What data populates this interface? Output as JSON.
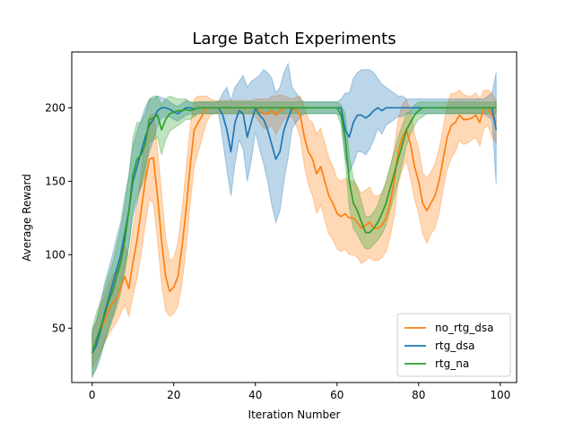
{
  "chart_data": {
    "type": "line",
    "title": "Large Batch Experiments",
    "xlabel": "Iteration Number",
    "ylabel": "Average Reward",
    "xlim": [
      -5,
      104
    ],
    "ylim": [
      13,
      238
    ],
    "xticks": [
      0,
      20,
      40,
      60,
      80,
      100
    ],
    "yticks": [
      50,
      100,
      150,
      200
    ],
    "grid": false,
    "legend_position": "lower-right",
    "x": [
      0,
      1,
      2,
      3,
      4,
      5,
      6,
      7,
      8,
      9,
      10,
      11,
      12,
      13,
      14,
      15,
      16,
      17,
      18,
      19,
      20,
      21,
      22,
      23,
      24,
      25,
      26,
      27,
      28,
      29,
      30,
      31,
      32,
      33,
      34,
      35,
      36,
      37,
      38,
      39,
      40,
      41,
      42,
      43,
      44,
      45,
      46,
      47,
      48,
      49,
      50,
      51,
      52,
      53,
      54,
      55,
      56,
      57,
      58,
      59,
      60,
      61,
      62,
      63,
      64,
      65,
      66,
      67,
      68,
      69,
      70,
      71,
      72,
      73,
      74,
      75,
      76,
      77,
      78,
      79,
      80,
      81,
      82,
      83,
      84,
      85,
      86,
      87,
      88,
      89,
      90,
      91,
      92,
      93,
      94,
      95,
      96,
      97,
      98,
      99
    ],
    "series": [
      {
        "name": "no_rtg_dsa",
        "color": "#ff7f0e",
        "values": [
          33,
          40,
          48,
          55,
          62,
          67,
          70,
          78,
          85,
          77,
          95,
          110,
          130,
          150,
          165,
          166,
          140,
          110,
          85,
          75,
          78,
          85,
          105,
          130,
          160,
          185,
          190,
          195,
          200,
          200,
          200,
          200,
          200,
          200,
          200,
          200,
          200,
          200,
          200,
          200,
          200,
          198,
          196,
          196,
          198,
          195,
          198,
          200,
          200,
          200,
          198,
          195,
          180,
          170,
          165,
          155,
          160,
          150,
          140,
          135,
          128,
          126,
          128,
          125,
          125,
          122,
          118,
          120,
          122,
          118,
          118,
          120,
          125,
          135,
          150,
          170,
          180,
          185,
          175,
          160,
          150,
          135,
          130,
          135,
          140,
          150,
          165,
          180,
          188,
          190,
          195,
          192,
          192,
          193,
          195,
          190,
          200,
          200,
          195,
          190
        ],
        "lower": [
          23,
          28,
          34,
          40,
          45,
          50,
          54,
          60,
          66,
          58,
          72,
          84,
          100,
          120,
          138,
          135,
          110,
          80,
          62,
          58,
          60,
          65,
          80,
          104,
          134,
          160,
          170,
          180,
          190,
          195,
          196,
          196,
          196,
          196,
          196,
          196,
          196,
          196,
          196,
          196,
          194,
          190,
          186,
          186,
          188,
          182,
          187,
          192,
          193,
          194,
          188,
          180,
          160,
          148,
          140,
          128,
          134,
          124,
          114,
          110,
          104,
          102,
          104,
          100,
          100,
          98,
          94,
          96,
          98,
          96,
          96,
          98,
          102,
          112,
          126,
          148,
          158,
          164,
          152,
          138,
          128,
          114,
          108,
          114,
          118,
          128,
          144,
          158,
          166,
          170,
          178,
          175,
          176,
          178,
          180,
          174,
          186,
          188,
          180,
          176
        ],
        "upper": [
          45,
          54,
          64,
          71,
          80,
          86,
          90,
          98,
          106,
          98,
          118,
          134,
          156,
          178,
          194,
          196,
          172,
          142,
          112,
          96,
          98,
          108,
          130,
          158,
          186,
          206,
          208,
          208,
          208,
          206,
          205,
          205,
          205,
          205,
          205,
          205,
          205,
          205,
          205,
          205,
          206,
          206,
          206,
          206,
          208,
          208,
          209,
          208,
          207,
          206,
          207,
          208,
          200,
          192,
          190,
          182,
          186,
          176,
          166,
          160,
          152,
          150,
          152,
          150,
          150,
          146,
          142,
          144,
          146,
          140,
          140,
          142,
          148,
          158,
          172,
          192,
          202,
          206,
          198,
          182,
          172,
          156,
          152,
          156,
          162,
          172,
          186,
          202,
          210,
          210,
          212,
          209,
          208,
          208,
          210,
          206,
          212,
          212,
          210,
          205
        ]
      },
      {
        "name": "rtg_dsa",
        "color": "#1f77b4",
        "values": [
          33,
          38,
          48,
          60,
          70,
          80,
          90,
          100,
          115,
          130,
          150,
          160,
          170,
          180,
          188,
          192,
          198,
          200,
          200,
          199,
          197,
          196,
          198,
          200,
          200,
          199,
          200,
          200,
          200,
          200,
          200,
          200,
          195,
          185,
          170,
          190,
          198,
          196,
          180,
          190,
          200,
          195,
          192,
          185,
          175,
          165,
          170,
          185,
          193,
          200,
          200,
          200,
          200,
          200,
          200,
          200,
          200,
          200,
          200,
          200,
          200,
          200,
          185,
          180,
          190,
          195,
          195,
          193,
          195,
          198,
          200,
          198,
          200,
          200,
          200,
          200,
          200,
          200,
          200,
          200,
          200,
          200,
          200,
          200,
          200,
          200,
          200,
          200,
          200,
          200,
          200,
          200,
          200,
          200,
          200,
          200,
          200,
          200,
          200,
          185
        ],
        "lower": [
          18,
          22,
          30,
          40,
          50,
          58,
          68,
          78,
          92,
          106,
          126,
          136,
          148,
          160,
          170,
          178,
          188,
          193,
          194,
          194,
          192,
          191,
          193,
          195,
          196,
          195,
          196,
          196,
          196,
          196,
          196,
          196,
          178,
          158,
          140,
          162,
          178,
          172,
          150,
          164,
          184,
          172,
          162,
          150,
          134,
          122,
          130,
          150,
          166,
          186,
          190,
          194,
          196,
          196,
          196,
          196,
          196,
          196,
          196,
          196,
          196,
          194,
          166,
          156,
          162,
          170,
          170,
          168,
          172,
          178,
          186,
          182,
          188,
          190,
          192,
          194,
          194,
          196,
          196,
          196,
          196,
          196,
          196,
          196,
          196,
          196,
          196,
          196,
          196,
          196,
          196,
          196,
          196,
          196,
          196,
          196,
          196,
          194,
          192,
          148
        ],
        "upper": [
          48,
          55,
          66,
          80,
          90,
          100,
          112,
          122,
          140,
          154,
          174,
          184,
          192,
          200,
          206,
          206,
          208,
          207,
          206,
          204,
          202,
          201,
          203,
          205,
          204,
          203,
          204,
          204,
          204,
          204,
          204,
          204,
          210,
          214,
          205,
          214,
          218,
          222,
          214,
          218,
          220,
          222,
          226,
          224,
          220,
          210,
          214,
          224,
          230,
          214,
          210,
          206,
          204,
          204,
          204,
          204,
          204,
          204,
          204,
          204,
          204,
          206,
          210,
          210,
          220,
          224,
          226,
          226,
          226,
          224,
          220,
          216,
          214,
          212,
          210,
          208,
          208,
          206,
          206,
          206,
          206,
          206,
          206,
          206,
          206,
          206,
          206,
          206,
          206,
          206,
          206,
          206,
          206,
          206,
          206,
          206,
          206,
          208,
          210,
          224
        ]
      },
      {
        "name": "rtg_na",
        "color": "#2ca02c",
        "values": [
          33,
          42,
          50,
          58,
          68,
          75,
          85,
          95,
          110,
          130,
          155,
          165,
          168,
          175,
          192,
          193,
          195,
          185,
          192,
          196,
          197,
          198,
          198,
          199,
          198,
          199,
          200,
          200,
          200,
          200,
          200,
          200,
          200,
          200,
          200,
          200,
          200,
          200,
          200,
          200,
          200,
          200,
          200,
          200,
          200,
          200,
          200,
          200,
          200,
          200,
          200,
          200,
          200,
          200,
          200,
          200,
          200,
          200,
          200,
          200,
          200,
          195,
          180,
          150,
          135,
          130,
          122,
          115,
          115,
          118,
          122,
          128,
          135,
          145,
          155,
          165,
          175,
          185,
          190,
          195,
          198,
          200,
          200,
          200,
          200,
          200,
          200,
          200,
          200,
          200,
          200,
          200,
          200,
          200,
          200,
          200,
          200,
          200,
          200,
          200
        ],
        "lower": [
          16,
          24,
          32,
          40,
          48,
          56,
          64,
          74,
          88,
          106,
          130,
          140,
          146,
          154,
          176,
          178,
          180,
          168,
          178,
          184,
          186,
          188,
          190,
          192,
          192,
          194,
          196,
          196,
          196,
          196,
          196,
          196,
          196,
          196,
          196,
          196,
          196,
          196,
          196,
          196,
          196,
          196,
          196,
          196,
          196,
          196,
          196,
          196,
          196,
          196,
          196,
          196,
          196,
          196,
          196,
          196,
          196,
          196,
          196,
          196,
          196,
          188,
          164,
          132,
          118,
          114,
          108,
          104,
          104,
          107,
          110,
          114,
          120,
          130,
          140,
          150,
          162,
          174,
          182,
          188,
          192,
          194,
          196,
          196,
          196,
          196,
          196,
          196,
          196,
          196,
          196,
          196,
          196,
          196,
          196,
          196,
          196,
          196,
          196,
          196
        ],
        "upper": [
          50,
          60,
          68,
          76,
          86,
          94,
          106,
          118,
          134,
          154,
          180,
          190,
          190,
          196,
          206,
          208,
          208,
          202,
          206,
          208,
          207,
          206,
          206,
          206,
          204,
          204,
          204,
          204,
          204,
          204,
          204,
          204,
          204,
          204,
          204,
          204,
          204,
          204,
          204,
          204,
          204,
          204,
          204,
          204,
          204,
          204,
          204,
          204,
          204,
          204,
          204,
          204,
          204,
          204,
          204,
          204,
          204,
          204,
          204,
          204,
          204,
          202,
          196,
          168,
          152,
          146,
          136,
          126,
          126,
          129,
          134,
          142,
          150,
          160,
          170,
          180,
          188,
          196,
          198,
          202,
          204,
          204,
          204,
          204,
          204,
          204,
          204,
          204,
          204,
          204,
          204,
          204,
          204,
          204,
          204,
          204,
          204,
          204,
          204,
          204
        ]
      }
    ]
  }
}
